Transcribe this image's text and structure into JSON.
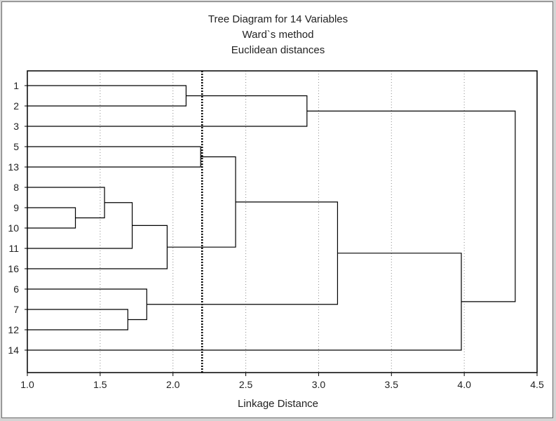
{
  "chart_data": {
    "type": "dendrogram",
    "title": "Tree Diagram for 14  Variables",
    "subtitle_lines": [
      "Ward`s method",
      "Euclidean distances"
    ],
    "xlabel": "Linkage Distance",
    "xlim": [
      1.0,
      4.5
    ],
    "x_ticks": [
      "1.0",
      "1.5",
      "2.0",
      "2.5",
      "3.0",
      "3.5",
      "4.0",
      "4.5"
    ],
    "x_tick_values": [
      1.0,
      1.5,
      2.0,
      2.5,
      3.0,
      3.5,
      4.0,
      4.5
    ],
    "grid": true,
    "cut_line": 2.2,
    "leaves": [
      "1",
      "2",
      "3",
      "5",
      "13",
      "8",
      "9",
      "10",
      "11",
      "16",
      "6",
      "7",
      "12",
      "14"
    ],
    "merges": [
      {
        "a": "L:9",
        "b": "L:10",
        "height": 1.33
      },
      {
        "a": "L:8",
        "b": "M:0",
        "height": 1.53
      },
      {
        "a": "L:7",
        "b": "L:12",
        "height": 1.69
      },
      {
        "a": "M:1",
        "b": "L:11",
        "height": 1.72
      },
      {
        "a": "L:6",
        "b": "M:2",
        "height": 1.82
      },
      {
        "a": "M:3",
        "b": "L:16",
        "height": 1.96
      },
      {
        "a": "L:1",
        "b": "L:2",
        "height": 2.09
      },
      {
        "a": "L:5",
        "b": "L:13",
        "height": 2.19
      },
      {
        "a": "M:7",
        "b": "M:5",
        "height": 2.43
      },
      {
        "a": "M:6",
        "b": "L:3",
        "height": 2.92
      },
      {
        "a": "M:8",
        "b": "M:4",
        "height": 3.13
      },
      {
        "a": "M:10",
        "b": "L:14",
        "height": 3.98
      },
      {
        "a": "M:9",
        "b": "M:11",
        "height": 4.35
      }
    ]
  }
}
